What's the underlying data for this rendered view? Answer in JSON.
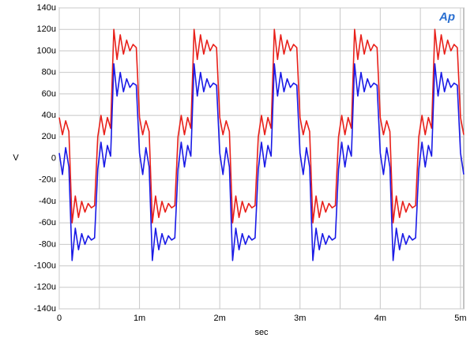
{
  "chart_data": {
    "type": "line",
    "logo": "Ap",
    "xlabel": "sec",
    "ylabel": "V",
    "xlim": [
      0,
      5.04
    ],
    "ylim": [
      -140,
      140
    ],
    "xticks": [
      {
        "value": 0,
        "label": "0"
      },
      {
        "value": 1,
        "label": "1m"
      },
      {
        "value": 2,
        "label": "2m"
      },
      {
        "value": 3,
        "label": "3m"
      },
      {
        "value": 4,
        "label": "4m"
      },
      {
        "value": 5,
        "label": "5m"
      }
    ],
    "xgrid_minor": [
      0.5,
      1.5,
      2.5,
      3.5,
      4.5
    ],
    "yticks": [
      {
        "value": -140,
        "label": "-140u"
      },
      {
        "value": -120,
        "label": "-120u"
      },
      {
        "value": -100,
        "label": "-100u"
      },
      {
        "value": -80,
        "label": "-80u"
      },
      {
        "value": -60,
        "label": "-60u"
      },
      {
        "value": -40,
        "label": "-40u"
      },
      {
        "value": -20,
        "label": "-20u"
      },
      {
        "value": 0,
        "label": "0"
      },
      {
        "value": 20,
        "label": "20u"
      },
      {
        "value": 40,
        "label": "40u"
      },
      {
        "value": 60,
        "label": "60u"
      },
      {
        "value": 80,
        "label": "80u"
      },
      {
        "value": 100,
        "label": "100u"
      },
      {
        "value": 120,
        "label": "120u"
      },
      {
        "value": 140,
        "label": "140u"
      }
    ],
    "grid": true,
    "x": [
      0,
      0.04,
      0.08,
      0.12,
      0.16,
      0.2,
      0.24,
      0.28,
      0.32,
      0.36,
      0.4,
      0.44,
      0.48,
      0.52,
      0.56,
      0.6,
      0.64,
      0.68,
      0.72,
      0.76,
      0.8,
      0.84,
      0.88,
      0.92,
      0.96,
      1,
      1.04,
      1.08,
      1.12,
      1.16,
      1.2,
      1.24,
      1.28,
      1.32,
      1.36,
      1.4,
      1.44,
      1.48,
      1.52,
      1.56,
      1.6,
      1.64,
      1.68,
      1.72,
      1.76,
      1.8,
      1.84,
      1.88,
      1.92,
      1.96,
      2,
      2.04,
      2.08,
      2.12,
      2.16,
      2.2,
      2.24,
      2.28,
      2.32,
      2.36,
      2.4,
      2.44,
      2.48,
      2.52,
      2.56,
      2.6,
      2.64,
      2.68,
      2.72,
      2.76,
      2.8,
      2.84,
      2.88,
      2.92,
      2.96,
      3,
      3.04,
      3.08,
      3.12,
      3.16,
      3.2,
      3.24,
      3.28,
      3.32,
      3.36,
      3.4,
      3.44,
      3.48,
      3.52,
      3.56,
      3.6,
      3.64,
      3.68,
      3.72,
      3.76,
      3.8,
      3.84,
      3.88,
      3.92,
      3.96,
      4,
      4.04,
      4.08,
      4.12,
      4.16,
      4.2,
      4.24,
      4.28,
      4.32,
      4.36,
      4.4,
      4.44,
      4.48,
      4.52,
      4.56,
      4.6,
      4.64,
      4.68,
      4.72,
      4.76,
      4.8,
      4.84,
      4.88,
      4.92,
      4.96,
      5,
      5.04
    ],
    "series": [
      {
        "color": "#e8201a",
        "values": [
          38,
          22,
          35,
          25,
          -60,
          -35,
          -55,
          -40,
          -50,
          -42,
          -46,
          -44,
          20,
          40,
          22,
          38,
          28,
          120,
          92,
          115,
          97,
          110,
          100,
          106,
          103,
          38,
          22,
          35,
          25,
          -60,
          -35,
          -55,
          -40,
          -50,
          -42,
          -46,
          -44,
          20,
          40,
          22,
          38,
          28,
          120,
          92,
          115,
          97,
          110,
          100,
          106,
          103,
          38,
          22,
          35,
          25,
          -60,
          -35,
          -55,
          -40,
          -50,
          -42,
          -46,
          -44,
          20,
          40,
          22,
          38,
          28,
          120,
          92,
          115,
          97,
          110,
          100,
          106,
          103,
          38,
          22,
          35,
          25,
          -60,
          -35,
          -55,
          -40,
          -50,
          -42,
          -46,
          -44,
          20,
          40,
          22,
          38,
          28,
          120,
          92,
          115,
          97,
          110,
          100,
          106,
          103,
          38,
          22,
          35,
          25,
          -60,
          -35,
          -55,
          -40,
          -50,
          -42,
          -46,
          -44,
          20,
          40,
          22,
          38,
          28,
          120,
          92,
          115,
          97,
          110,
          100,
          106,
          103,
          38,
          22
        ]
      },
      {
        "color": "#1a1ae6",
        "values": [
          5,
          -15,
          10,
          -8,
          -95,
          -65,
          -85,
          -70,
          -80,
          -72,
          -76,
          -74,
          -10,
          15,
          -8,
          12,
          2,
          88,
          58,
          80,
          62,
          74,
          66,
          70,
          68,
          5,
          -15,
          10,
          -8,
          -95,
          -65,
          -85,
          -70,
          -80,
          -72,
          -76,
          -74,
          -10,
          15,
          -8,
          12,
          2,
          88,
          58,
          80,
          62,
          74,
          66,
          70,
          68,
          5,
          -15,
          10,
          -8,
          -95,
          -65,
          -85,
          -70,
          -80,
          -72,
          -76,
          -74,
          -10,
          15,
          -8,
          12,
          2,
          88,
          58,
          80,
          62,
          74,
          66,
          70,
          68,
          5,
          -15,
          10,
          -8,
          -95,
          -65,
          -85,
          -70,
          -80,
          -72,
          -76,
          -74,
          -10,
          15,
          -8,
          12,
          2,
          88,
          58,
          80,
          62,
          74,
          66,
          70,
          68,
          5,
          -15,
          10,
          -8,
          -95,
          -65,
          -85,
          -70,
          -80,
          -72,
          -76,
          -74,
          -10,
          15,
          -8,
          12,
          2,
          88,
          58,
          80,
          62,
          74,
          66,
          70,
          68,
          5,
          -15
        ]
      }
    ]
  }
}
